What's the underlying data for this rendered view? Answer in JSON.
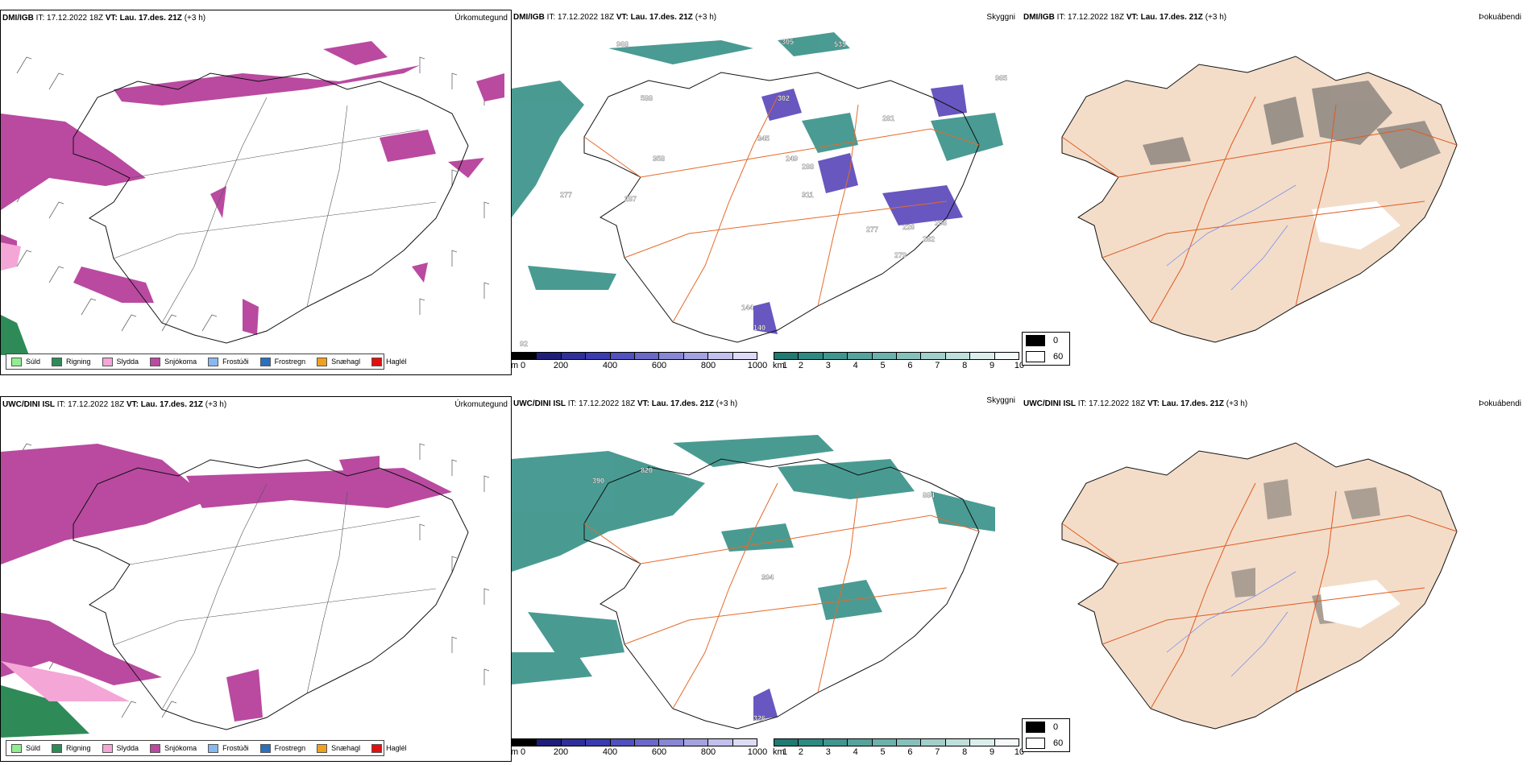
{
  "colors": {
    "sudl": "#90ee90",
    "rigning": "#2e8b57",
    "slydda": "#f4a6d7",
    "snjokoma": "#b94aa0",
    "frostudi": "#87b9ee",
    "frostregn": "#2b6fbf",
    "snaehagl": "#f0a020",
    "haglel": "#e01010",
    "cloud": "#2a8a80",
    "highcloud": "#4d3ab5",
    "land": "#f3ddc9",
    "road": "#e66a2a",
    "river": "#7c8fe8"
  },
  "rows": [
    {
      "model": "DMI/IGB",
      "it_label": "IT:",
      "it_value": "17.12.2022 18Z",
      "vt_label": "VT:",
      "vt_value": "Lau. 17.des. 21Z",
      "lead": "(+3 h)",
      "labels": [
        {
          "text": "305",
          "x": 0
        },
        {
          "text": "535",
          "x": 0
        },
        {
          "text": "968",
          "x": 0
        },
        {
          "text": "965",
          "x": 0
        },
        {
          "text": "588",
          "x": 0
        },
        {
          "text": "302",
          "x": 0
        },
        {
          "text": "281",
          "x": 0
        },
        {
          "text": "358",
          "x": 0
        },
        {
          "text": "345",
          "x": 0
        },
        {
          "text": "288",
          "x": 0
        },
        {
          "text": "249",
          "x": 0
        },
        {
          "text": "277",
          "x": 0
        },
        {
          "text": "311",
          "x": 0
        },
        {
          "text": "287",
          "x": 0
        },
        {
          "text": "277",
          "x": 0
        },
        {
          "text": "226",
          "x": 0
        },
        {
          "text": "206",
          "x": 0
        },
        {
          "text": "282",
          "x": 0
        },
        {
          "text": "279",
          "x": 0
        },
        {
          "text": "140",
          "x": 0
        },
        {
          "text": "144",
          "x": 0
        },
        {
          "text": "92",
          "x": 0
        }
      ]
    },
    {
      "model": "UWC/DINI ISL",
      "it_label": "IT:",
      "it_value": "17.12.2022 18Z",
      "vt_label": "VT:",
      "vt_value": "Lau. 17.des. 21Z",
      "lead": "(+3 h)",
      "labels": [
        {
          "text": "390",
          "x": 0
        },
        {
          "text": "820",
          "x": 0
        },
        {
          "text": "884",
          "x": 0
        },
        {
          "text": "394",
          "x": 0
        },
        {
          "text": "326",
          "x": 0
        }
      ]
    }
  ],
  "panel_titles": {
    "precip": "Úrkomutegund",
    "cloud": "Skyggni",
    "fog": "Þokuábendi"
  },
  "precip_legend": [
    {
      "label": "Súld",
      "color": "#90ee90"
    },
    {
      "label": "Rigning",
      "color": "#2e8b57"
    },
    {
      "label": "Slydda",
      "color": "#f4a6d7"
    },
    {
      "label": "Snjókoma",
      "color": "#b94aa0"
    },
    {
      "label": "Frostúði",
      "color": "#87b9ee"
    },
    {
      "label": "Frostregn",
      "color": "#2b6fbf"
    },
    {
      "label": "Snæhagl",
      "color": "#f0a020"
    },
    {
      "label": "Haglél",
      "color": "#e01010"
    }
  ],
  "ceiling_bar": {
    "unit": "m",
    "ticks": [
      "0",
      "200",
      "400",
      "600",
      "800",
      "1000"
    ],
    "colors": [
      "#000000",
      "#1e1e7a",
      "#2f2f9a",
      "#3b3bb0",
      "#5050bf",
      "#6a68c9",
      "#8886d5",
      "#a4a2e0",
      "#c2c0ec",
      "#dddcf6"
    ]
  },
  "vis_bar": {
    "unit": "km",
    "ticks": [
      "1",
      "2",
      "3",
      "4",
      "5",
      "6",
      "7",
      "8",
      "9",
      "10"
    ],
    "colors": [
      "#1f7a72",
      "#2d8a82",
      "#3f968f",
      "#55a39c",
      "#6cb1ab",
      "#86c0ba",
      "#a2cfca",
      "#bfdfdb",
      "#dbeeec",
      "#f4faf9"
    ]
  },
  "fog_legend": [
    {
      "value": "0",
      "color": "#000000"
    },
    {
      "value": "60",
      "color": "#ffffff"
    }
  ]
}
